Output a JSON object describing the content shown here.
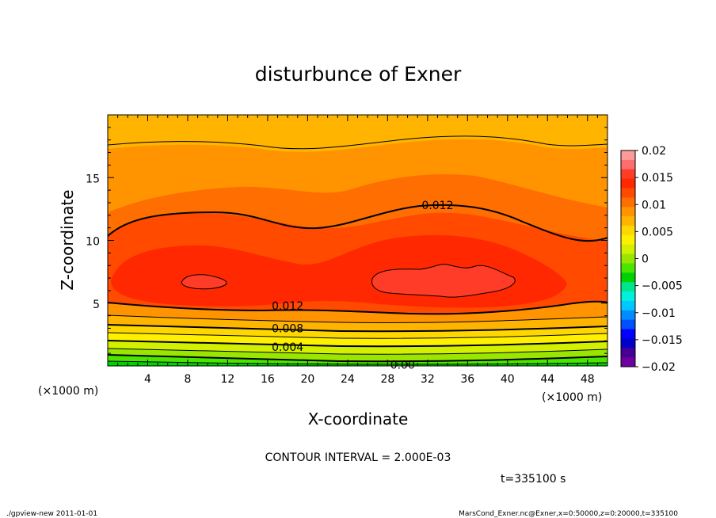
{
  "chart_data": {
    "type": "heatmap",
    "subtype": "filled-contour",
    "title": "disturbunce of Exner",
    "xlabel": "X-coordinate",
    "ylabel": "Z-coordinate",
    "x_unit": "(×1000 m)",
    "y_unit": "(×1000 m)",
    "xlim": [
      0,
      50
    ],
    "ylim": [
      0,
      20
    ],
    "x_ticks": [
      4,
      8,
      12,
      16,
      20,
      24,
      28,
      32,
      36,
      40,
      44,
      48
    ],
    "y_ticks": [
      5,
      10,
      15
    ],
    "contour_interval_text": "CONTOUR INTERVAL = 2.000E-03",
    "time_text": "t=335100 s",
    "contour_labels": [
      {
        "text": "0.012",
        "x": 33,
        "z": 12.8
      },
      {
        "text": "0.012",
        "x": 18,
        "z": 4.8
      },
      {
        "text": "0.008",
        "x": 18,
        "z": 3.0
      },
      {
        "text": "0.004",
        "x": 18,
        "z": 1.5
      },
      {
        "text": "0.00",
        "x": 29.5,
        "z": 0.1
      }
    ],
    "colorbar": {
      "levels": [
        0.02,
        0.015,
        0.01,
        0.005,
        0,
        -0.005,
        -0.01,
        -0.015,
        -0.02
      ],
      "labels": [
        "0.02",
        "0.015",
        "0.01",
        "0.005",
        "0",
        "−0.005",
        "−0.01",
        "−0.015",
        "−0.02"
      ],
      "colors": [
        "#ff9a9a",
        "#ff6e6e",
        "#ff3c28",
        "#ff2800",
        "#ff4a00",
        "#ff6e00",
        "#ff9400",
        "#ffb400",
        "#ffd700",
        "#fff000",
        "#d2f000",
        "#9be600",
        "#4be600",
        "#00d200",
        "#00e68c",
        "#00f0dc",
        "#00c8ff",
        "#008cff",
        "#0050ff",
        "#0000ff",
        "#0000c8",
        "#460096",
        "#6e00a0"
      ]
    },
    "footer_left": "./gpview-new   2011-01-01",
    "footer_right": "MarsCond_Exner.nc@Exner,x=0:50000,z=0:20000,t=335100"
  }
}
